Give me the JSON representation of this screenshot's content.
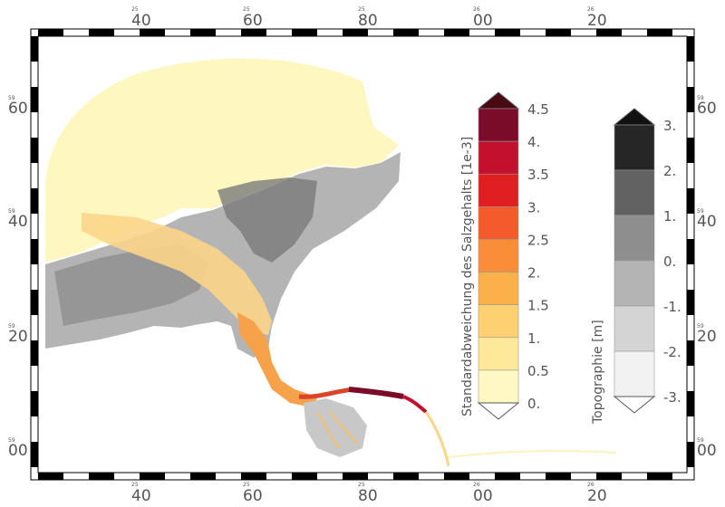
{
  "map": {
    "top_labels": [
      {
        "main": "40",
        "small": "25"
      },
      {
        "main": "60",
        "small": "25"
      },
      {
        "main": "80",
        "small": "25"
      },
      {
        "main": "00",
        "small": "26"
      },
      {
        "main": "20",
        "small": "26"
      }
    ],
    "bottom_labels": [
      {
        "main": "40",
        "small": "25"
      },
      {
        "main": "60",
        "small": "25"
      },
      {
        "main": "80",
        "small": "25"
      },
      {
        "main": "00",
        "small": "26"
      },
      {
        "main": "20",
        "small": "26"
      }
    ],
    "left_labels": [
      {
        "main": "60",
        "small": "59"
      },
      {
        "main": "40",
        "small": "59"
      },
      {
        "main": "20",
        "small": "59"
      },
      {
        "main": "00",
        "small": "59"
      }
    ],
    "right_labels": [
      {
        "main": "60",
        "small": "59"
      },
      {
        "main": "40",
        "small": "59"
      },
      {
        "main": "20",
        "small": "59"
      },
      {
        "main": "00",
        "small": "59"
      }
    ]
  },
  "salinity_colorbar": {
    "title": "Standardabweichung des Salzgehalts [1e-3]",
    "labels": [
      "4.5",
      "4.",
      "3.5",
      "3.",
      "2.5",
      "2.",
      "1.5",
      "1.",
      "0.5",
      "0."
    ],
    "colors": [
      "#7a0c2a",
      "#c2102e",
      "#e02020",
      "#f55a2a",
      "#f98d3a",
      "#fcb04a",
      "#fdd072",
      "#fee89a",
      "#fff8c4"
    ],
    "overflow_color": "#4a0a14"
  },
  "topography_colorbar": {
    "title": "Topographie [m]",
    "labels": [
      "3.",
      "2.",
      "1.",
      "0.",
      "-1.",
      "-2.",
      "-3."
    ],
    "colors": [
      "#262626",
      "#626262",
      "#8e8e8e",
      "#b4b4b4",
      "#d4d4d4",
      "#f2f2f2"
    ],
    "overflow_color": "#111111"
  }
}
